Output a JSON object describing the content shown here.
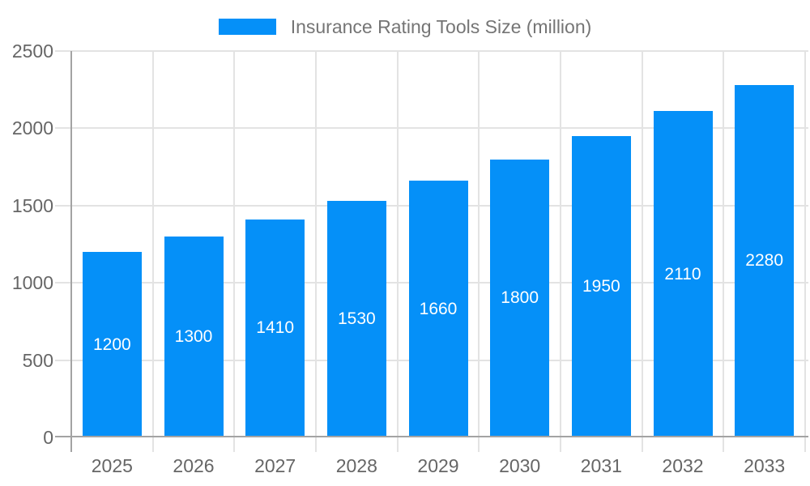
{
  "legend": {
    "label": "Insurance Rating Tools Size (million)"
  },
  "chart_data": {
    "type": "bar",
    "title": "Insurance Rating Tools Size (million)",
    "categories": [
      "2025",
      "2026",
      "2027",
      "2028",
      "2029",
      "2030",
      "2031",
      "2032",
      "2033"
    ],
    "values": [
      1200,
      1300,
      1410,
      1530,
      1660,
      1800,
      1950,
      2110,
      2280
    ],
    "xlabel": "",
    "ylabel": "",
    "ylim": [
      0,
      2500
    ],
    "yticks": [
      0,
      500,
      1000,
      1500,
      2000,
      2500
    ],
    "grid": true,
    "legend_position": "top",
    "value_label_position": "inside-center",
    "colors": {
      "bar": "#0590F8",
      "gridline": "#E3E3E3",
      "axis": "#A3A3A3",
      "tick_label": "#666666",
      "legend_text": "#757575",
      "value_label": "#FFFFFF"
    }
  }
}
